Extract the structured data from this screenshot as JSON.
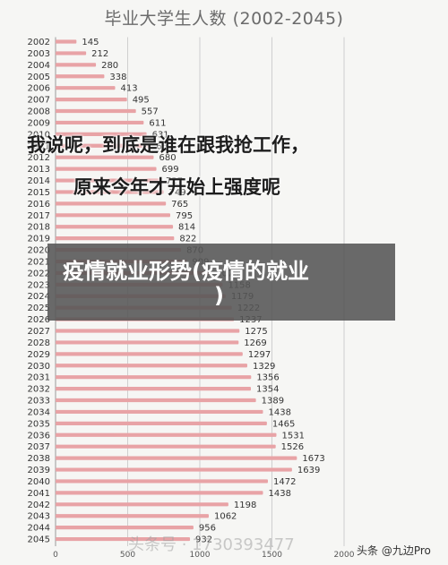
{
  "overlay": {
    "line1": "我说呢，到底是谁在跟我抢工作，",
    "line2": "原来今年才开始上强度呢"
  },
  "banner": {
    "line1": "疫情就业形势(疫情的就业",
    "line2": ")"
  },
  "watermark": "头条号 · 1730393477",
  "credit": "头条 @九边Pro",
  "colors": {
    "bar": "#e8a3a6",
    "bar_highlight": "#e8a3a6",
    "label_highlight": "#d62828",
    "grid": "#cfcfcf",
    "text": "#555555",
    "background": "#f6f6f4"
  },
  "chart_data": {
    "type": "bar",
    "orientation": "horizontal",
    "title": "毕业大学生人数 (2002-2045)",
    "categories": [
      "2002",
      "2003",
      "2004",
      "2005",
      "2006",
      "2007",
      "2008",
      "2009",
      "2010",
      "2011",
      "2012",
      "2013",
      "2014",
      "2015",
      "2016",
      "2017",
      "2018",
      "2019",
      "2020",
      "2021",
      "2022",
      "2023",
      "2024",
      "2025",
      "2026",
      "2027",
      "2028",
      "2029",
      "2030",
      "2031",
      "2032",
      "2033",
      "2034",
      "2035",
      "2036",
      "2037",
      "2038",
      "2039",
      "2040",
      "2041",
      "2042",
      "2043",
      "2044",
      "2045"
    ],
    "values": [
      145,
      212,
      280,
      338,
      413,
      495,
      557,
      611,
      631,
      660,
      680,
      699,
      727,
      749,
      765,
      795,
      814,
      822,
      870,
      909,
      1076,
      1158,
      1179,
      1222,
      1237,
      1275,
      1269,
      1297,
      1329,
      1356,
      1354,
      1389,
      1438,
      1465,
      1531,
      1526,
      1673,
      1639,
      1472,
      1438,
      1198,
      1062,
      956,
      932
    ],
    "highlight": "1673",
    "xlim": [
      0,
      2000
    ],
    "x_ticks": [
      "0",
      "500",
      "1000",
      "1500",
      "2000"
    ],
    "grid": true
  }
}
